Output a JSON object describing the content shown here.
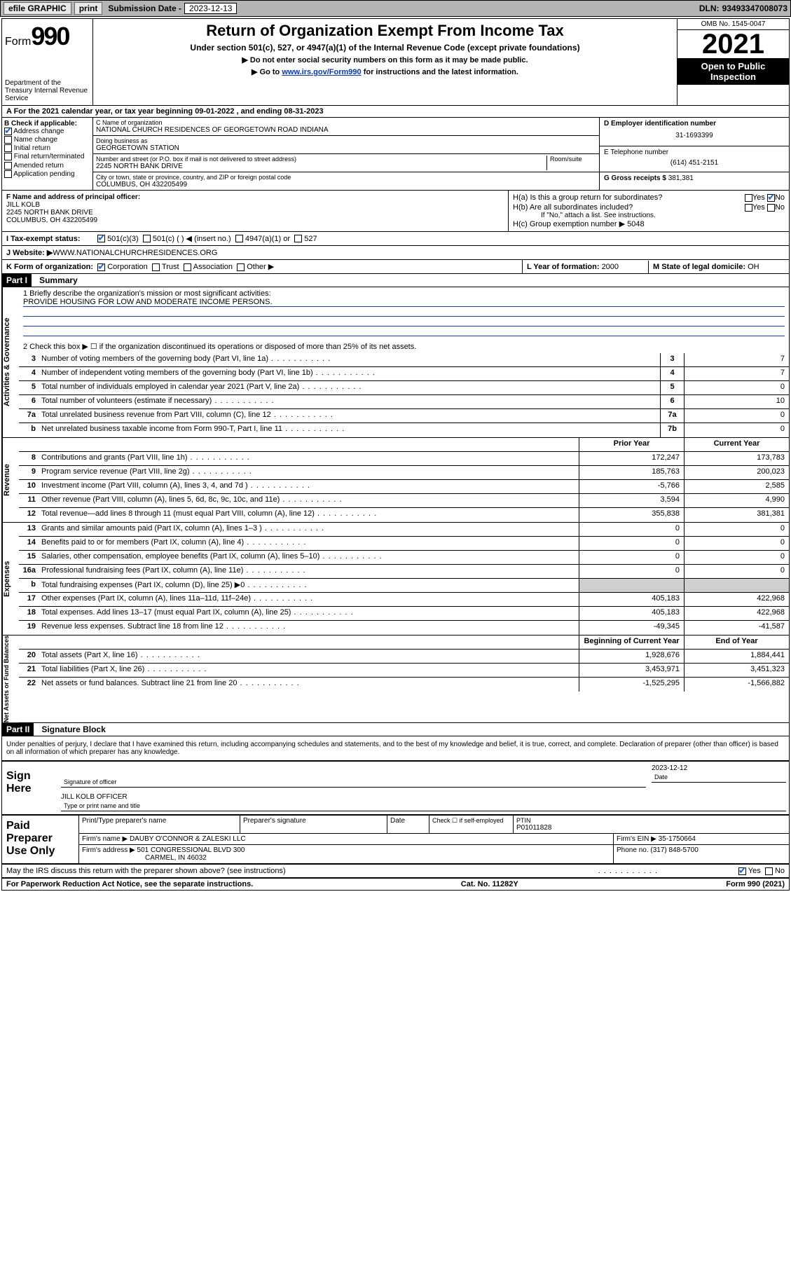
{
  "topbar": {
    "efile": "efile GRAPHIC",
    "print": "print",
    "subdate_label": "Submission Date - ",
    "subdate": "2023-12-13",
    "dln_label": "DLN: ",
    "dln": "93493347008073"
  },
  "header": {
    "form_word": "Form",
    "form_num": "990",
    "dept": "Department of the Treasury Internal Revenue Service",
    "title": "Return of Organization Exempt From Income Tax",
    "sub1": "Under section 501(c), 527, or 4947(a)(1) of the Internal Revenue Code (except private foundations)",
    "sub2": "▶ Do not enter social security numbers on this form as it may be made public.",
    "sub3_pre": "▶ Go to ",
    "sub3_link": "www.irs.gov/Form990",
    "sub3_post": " for instructions and the latest information.",
    "omb": "OMB No. 1545-0047",
    "year": "2021",
    "open": "Open to Public Inspection"
  },
  "row_a": "A For the 2021 calendar year, or tax year beginning 09-01-2022    , and ending 08-31-2023",
  "col_b": {
    "hdr": "B Check if applicable:",
    "items": [
      "Address change",
      "Name change",
      "Initial return",
      "Final return/terminated",
      "Amended return",
      "Application pending"
    ],
    "checked": [
      true,
      false,
      false,
      false,
      false,
      false
    ]
  },
  "col_c": {
    "name_lbl": "C Name of organization",
    "name": "NATIONAL CHURCH RESIDENCES OF GEORGETOWN ROAD INDIANA",
    "dba_lbl": "Doing business as",
    "dba": "GEORGETOWN STATION",
    "street_lbl": "Number and street (or P.O. box if mail is not delivered to street address)",
    "room_lbl": "Room/suite",
    "street": "2245 NORTH BANK DRIVE",
    "city_lbl": "City or town, state or province, country, and ZIP or foreign postal code",
    "city": "COLUMBUS, OH  432205499"
  },
  "col_de": {
    "d_lbl": "D Employer identification number",
    "d_val": "31-1693399",
    "e_lbl": "E Telephone number",
    "e_val": "(614) 451-2151",
    "g_lbl": "G Gross receipts $ ",
    "g_val": "381,381"
  },
  "col_f": {
    "lbl": "F Name and address of principal officer:",
    "name": "JILL KOLB",
    "addr1": "2245 NORTH BANK DRIVE",
    "addr2": "COLUMBUS, OH  432205499"
  },
  "col_h": {
    "ha": "H(a)  Is this a group return for subordinates?",
    "hb": "H(b)  Are all subordinates included?",
    "hb_note": "If \"No,\" attach a list. See instructions.",
    "hc": "H(c)  Group exemption number ▶  ",
    "hc_val": "5048",
    "yes": "Yes",
    "no": "No"
  },
  "row_i": {
    "lbl": "I    Tax-exempt status:",
    "o1": "501(c)(3)",
    "o2": "501(c) (  ) ◀ (insert no.)",
    "o3": "4947(a)(1) or",
    "o4": "527"
  },
  "row_j": {
    "lbl": "J    Website: ▶  ",
    "val": "WWW.NATIONALCHURCHRESIDENCES.ORG"
  },
  "row_k": {
    "lbl": "K Form of organization:",
    "o1": "Corporation",
    "o2": "Trust",
    "o3": "Association",
    "o4": "Other ▶"
  },
  "row_l": {
    "lbl": "L Year of formation: ",
    "val": "2000"
  },
  "row_m": {
    "lbl": "M State of legal domicile: ",
    "val": "OH"
  },
  "part1": {
    "hdr": "Part I",
    "title": "Summary",
    "q1_lbl": "1   Briefly describe the organization's mission or most significant activities:",
    "q1_val": "PROVIDE HOUSING FOR LOW AND MODERATE INCOME PERSONS.",
    "q2": "2   Check this box ▶ ☐  if the organization discontinued its operations or disposed of more than 25% of its net assets.",
    "side_ag": "Activities & Governance",
    "side_rev": "Revenue",
    "side_exp": "Expenses",
    "side_net": "Net Assets or Fund Balances",
    "prior_hdr": "Prior Year",
    "curr_hdr": "Current Year",
    "begin_hdr": "Beginning of Current Year",
    "end_hdr": "End of Year",
    "gov_rows": [
      {
        "n": "3",
        "d": "Number of voting members of the governing body (Part VI, line 1a)",
        "box": "3",
        "v": "7"
      },
      {
        "n": "4",
        "d": "Number of independent voting members of the governing body (Part VI, line 1b)",
        "box": "4",
        "v": "7"
      },
      {
        "n": "5",
        "d": "Total number of individuals employed in calendar year 2021 (Part V, line 2a)",
        "box": "5",
        "v": "0"
      },
      {
        "n": "6",
        "d": "Total number of volunteers (estimate if necessary)",
        "box": "6",
        "v": "10"
      },
      {
        "n": "7a",
        "d": "Total unrelated business revenue from Part VIII, column (C), line 12",
        "box": "7a",
        "v": "0"
      },
      {
        "n": "b",
        "d": "Net unrelated business taxable income from Form 990-T, Part I, line 11",
        "box": "7b",
        "v": "0"
      }
    ],
    "rev_rows": [
      {
        "n": "8",
        "d": "Contributions and grants (Part VIII, line 1h)",
        "p": "172,247",
        "c": "173,783"
      },
      {
        "n": "9",
        "d": "Program service revenue (Part VIII, line 2g)",
        "p": "185,763",
        "c": "200,023"
      },
      {
        "n": "10",
        "d": "Investment income (Part VIII, column (A), lines 3, 4, and 7d )",
        "p": "-5,766",
        "c": "2,585"
      },
      {
        "n": "11",
        "d": "Other revenue (Part VIII, column (A), lines 5, 6d, 8c, 9c, 10c, and 11e)",
        "p": "3,594",
        "c": "4,990"
      },
      {
        "n": "12",
        "d": "Total revenue—add lines 8 through 11 (must equal Part VIII, column (A), line 12)",
        "p": "355,838",
        "c": "381,381"
      }
    ],
    "exp_rows": [
      {
        "n": "13",
        "d": "Grants and similar amounts paid (Part IX, column (A), lines 1–3 )",
        "p": "0",
        "c": "0"
      },
      {
        "n": "14",
        "d": "Benefits paid to or for members (Part IX, column (A), line 4)",
        "p": "0",
        "c": "0"
      },
      {
        "n": "15",
        "d": "Salaries, other compensation, employee benefits (Part IX, column (A), lines 5–10)",
        "p": "0",
        "c": "0"
      },
      {
        "n": "16a",
        "d": "Professional fundraising fees (Part IX, column (A), line 11e)",
        "p": "0",
        "c": "0"
      },
      {
        "n": "b",
        "d": "Total fundraising expenses (Part IX, column (D), line 25) ▶0",
        "p": "",
        "c": "",
        "shade": true
      },
      {
        "n": "17",
        "d": "Other expenses (Part IX, column (A), lines 11a–11d, 11f–24e)",
        "p": "405,183",
        "c": "422,968"
      },
      {
        "n": "18",
        "d": "Total expenses. Add lines 13–17 (must equal Part IX, column (A), line 25)",
        "p": "405,183",
        "c": "422,968"
      },
      {
        "n": "19",
        "d": "Revenue less expenses. Subtract line 18 from line 12",
        "p": "-49,345",
        "c": "-41,587"
      }
    ],
    "net_rows": [
      {
        "n": "20",
        "d": "Total assets (Part X, line 16)",
        "p": "1,928,676",
        "c": "1,884,441"
      },
      {
        "n": "21",
        "d": "Total liabilities (Part X, line 26)",
        "p": "3,453,971",
        "c": "3,451,323"
      },
      {
        "n": "22",
        "d": "Net assets or fund balances. Subtract line 21 from line 20",
        "p": "-1,525,295",
        "c": "-1,566,882"
      }
    ]
  },
  "part2": {
    "hdr": "Part II",
    "title": "Signature Block",
    "decl": "Under penalties of perjury, I declare that I have examined this return, including accompanying schedules and statements, and to the best of my knowledge and belief, it is true, correct, and complete. Declaration of preparer (other than officer) is based on all information of which preparer has any knowledge.",
    "sign_here": "Sign Here",
    "sig_officer": "Signature of officer",
    "sig_date_lbl": "Date",
    "sig_date": "2023-12-12",
    "officer": "JILL KOLB  OFFICER",
    "officer_lbl": "Type or print name and title"
  },
  "preparer": {
    "hdr": "Paid Preparer Use Only",
    "c1": "Print/Type preparer's name",
    "c2": "Preparer's signature",
    "c3": "Date",
    "c4_chk": "Check ☐  if self-employed",
    "c5_lbl": "PTIN",
    "c5_val": "P01011828",
    "firm_name_lbl": "Firm's name     ▶ ",
    "firm_name": "DAUBY O'CONNOR & ZALESKI LLC",
    "firm_ein_lbl": "Firm's EIN ▶ ",
    "firm_ein": "35-1750664",
    "firm_addr_lbl": "Firm's address ▶ ",
    "firm_addr1": "501 CONGRESSIONAL BLVD 300",
    "firm_addr2": "CARMEL, IN  46032",
    "phone_lbl": "Phone no. ",
    "phone": "(317) 848-5700"
  },
  "footer": {
    "discuss": "May the IRS discuss this return with the preparer shown above? (see instructions)",
    "yes": "Yes",
    "no": "No",
    "pra": "For Paperwork Reduction Act Notice, see the separate instructions.",
    "cat": "Cat. No. 11282Y",
    "form": "Form 990 (2021)"
  }
}
